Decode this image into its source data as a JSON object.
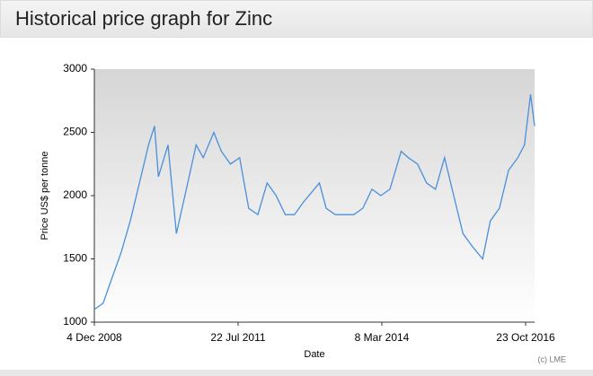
{
  "chart_data": {
    "type": "line",
    "title": "Historical price graph for Zinc",
    "y_label": "Price US$ per tonne",
    "x_label": "Date",
    "credit": "(c) LME",
    "color": "#4a90d9",
    "x": [
      "2008-12-04",
      "2009-02-01",
      "2009-04-01",
      "2009-06-01",
      "2009-08-01",
      "2009-10-01",
      "2009-12-01",
      "2010-01-10",
      "2010-02-05",
      "2010-04-10",
      "2010-06-05",
      "2010-08-01",
      "2010-10-15",
      "2010-12-01",
      "2011-02-10",
      "2011-04-01",
      "2011-06-01",
      "2011-08-01",
      "2011-10-01",
      "2011-12-01",
      "2012-02-01",
      "2012-04-01",
      "2012-06-01",
      "2012-08-01",
      "2012-10-01",
      "2013-01-15",
      "2013-03-01",
      "2013-05-01",
      "2013-07-01",
      "2013-09-01",
      "2013-11-01",
      "2014-01-01",
      "2014-03-01",
      "2014-05-01",
      "2014-07-15",
      "2014-09-01",
      "2014-11-01",
      "2015-01-01",
      "2015-03-01",
      "2015-05-01",
      "2015-07-01",
      "2015-09-01",
      "2015-11-01",
      "2016-01-10",
      "2016-03-01",
      "2016-05-01",
      "2016-07-01",
      "2016-09-01",
      "2016-10-15",
      "2016-11-25",
      "2016-12-22"
    ],
    "values": [
      1100,
      1150,
      1350,
      1550,
      1800,
      2100,
      2400,
      2550,
      2150,
      2400,
      1700,
      2000,
      2400,
      2300,
      2500,
      2350,
      2250,
      2300,
      1900,
      1850,
      2100,
      2000,
      1850,
      1850,
      1950,
      2100,
      1900,
      1850,
      1850,
      1850,
      1900,
      2050,
      2000,
      2050,
      2350,
      2300,
      2250,
      2100,
      2050,
      2300,
      2000,
      1700,
      1600,
      1500,
      1800,
      1900,
      2200,
      2300,
      2400,
      2800,
      2550
    ],
    "xlim": [
      "2008-12-04",
      "2016-12-22"
    ],
    "xticks": [
      {
        "value": "2008-12-04",
        "label": "4 Dec 2008"
      },
      {
        "value": "2011-07-22",
        "label": "22 Jul 2011"
      },
      {
        "value": "2014-03-08",
        "label": "8 Mar 2014"
      },
      {
        "value": "2016-10-23",
        "label": "23 Oct 2016"
      }
    ],
    "ylim": [
      1000,
      3000
    ],
    "yticks": [
      1000,
      1500,
      2000,
      2500,
      3000
    ]
  }
}
